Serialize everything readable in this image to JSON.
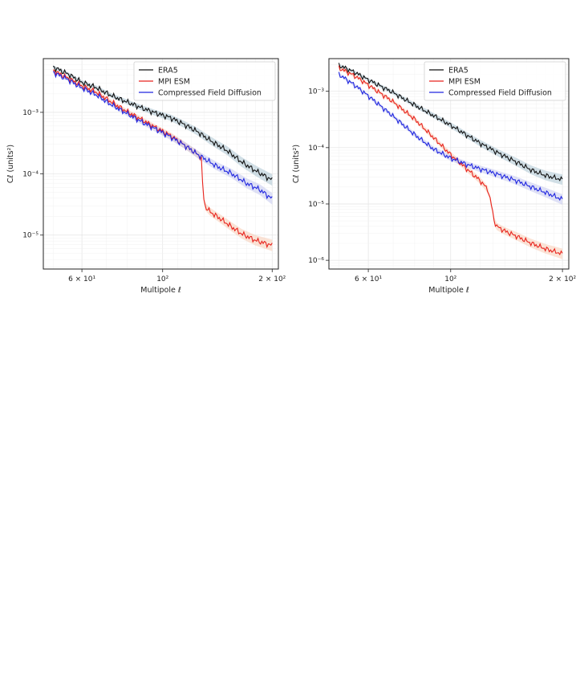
{
  "chart_data": [
    {
      "type": "line",
      "title": "",
      "xlabel": "Multipole ℓ",
      "ylabel": "Cℓ (units²)",
      "xscale": "log",
      "yscale": "log",
      "xlim": [
        47,
        208
      ],
      "ylim": [
        2.8e-06,
        0.0075
      ],
      "xticks": [
        {
          "value": 60,
          "label": "6 × 10¹"
        },
        {
          "value": 100,
          "label": "10²"
        },
        {
          "value": 200,
          "label": "2 × 10²"
        }
      ],
      "yticks": [
        {
          "value": 1e-05,
          "label": "10⁻⁵"
        },
        {
          "value": 0.0001,
          "label": "10⁻⁴"
        },
        {
          "value": 0.001,
          "label": "10⁻³"
        }
      ],
      "legend_position": "top-right",
      "series": [
        {
          "name": "ERA5",
          "color": "#111111",
          "band_color": "#9ab8c8",
          "x": [
            50,
            55,
            60,
            66,
            72,
            80,
            88,
            96,
            105,
            115,
            125,
            135,
            150,
            165,
            180,
            200
          ],
          "y": [
            0.0055,
            0.0042,
            0.0031,
            0.0025,
            0.0019,
            0.00147,
            0.00117,
            0.00097,
            0.00082,
            0.00063,
            0.00048,
            0.00035,
            0.00024,
            0.000155,
            0.000112,
            7.9e-05
          ]
        },
        {
          "name": "MPI ESM",
          "color": "#e8231d",
          "band_color": "#f7c0a3",
          "x": [
            50,
            55,
            60,
            66,
            72,
            80,
            88,
            96,
            105,
            115,
            125,
            128,
            129,
            131,
            135,
            145,
            155,
            165,
            180,
            200
          ],
          "y": [
            0.0048,
            0.0036,
            0.0027,
            0.0021,
            0.0015,
            0.00102,
            0.00075,
            0.00056,
            0.00042,
            0.00029,
            0.000205,
            0.00018,
            5e-05,
            2.9e-05,
            2.4e-05,
            1.8e-05,
            1.35e-05,
            1.05e-05,
            8.2e-06,
            6.8e-06
          ]
        },
        {
          "name": "Compressed Field Diffusion",
          "color": "#2026e0",
          "band_color": "#b8bcec",
          "x": [
            50,
            55,
            60,
            66,
            72,
            80,
            88,
            96,
            105,
            115,
            125,
            140,
            155,
            170,
            185,
            200
          ],
          "y": [
            0.0045,
            0.0034,
            0.0025,
            0.0019,
            0.00135,
            0.00095,
            0.00069,
            0.00053,
            0.0004,
            0.00029,
            0.000205,
            0.000135,
            0.0001,
            7e-05,
            5.5e-05,
            3.9e-05
          ]
        }
      ]
    },
    {
      "type": "line",
      "title": "",
      "xlabel": "Multipole ℓ",
      "ylabel": "Cℓ (units²)",
      "xscale": "log",
      "yscale": "log",
      "xlim": [
        47,
        208
      ],
      "ylim": [
        7e-07,
        0.0038
      ],
      "xticks": [
        {
          "value": 60,
          "label": "6 × 10¹"
        },
        {
          "value": 100,
          "label": "10²"
        },
        {
          "value": 200,
          "label": "2 × 10²"
        }
      ],
      "yticks": [
        {
          "value": 1e-06,
          "label": "10⁻⁶"
        },
        {
          "value": 1e-05,
          "label": "10⁻⁵"
        },
        {
          "value": 0.0001,
          "label": "10⁻⁴"
        },
        {
          "value": 0.001,
          "label": "10⁻³"
        }
      ],
      "legend_position": "top-right",
      "series": [
        {
          "name": "ERA5",
          "color": "#111111",
          "band_color": "#9ab8c8",
          "x": [
            50,
            55,
            60,
            70,
            80,
            90,
            100,
            110,
            120,
            135,
            150,
            165,
            180,
            200
          ],
          "y": [
            0.0029,
            0.0022,
            0.0016,
            0.00095,
            0.00057,
            0.00037,
            0.00025,
            0.00017,
            0.00012,
            7.9e-05,
            5.6e-05,
            4e-05,
            3.2e-05,
            2.7e-05
          ]
        },
        {
          "name": "MPI ESM",
          "color": "#e8231d",
          "band_color": "#f7c0a3",
          "x": [
            50,
            55,
            60,
            70,
            80,
            90,
            100,
            110,
            120,
            126,
            129,
            131,
            133,
            140,
            150,
            165,
            180,
            200
          ],
          "y": [
            0.0026,
            0.0019,
            0.0013,
            0.00065,
            0.00032,
            0.00015,
            7.5e-05,
            4.3e-05,
            2.6e-05,
            1.8e-05,
            9e-06,
            5e-06,
            4e-06,
            3.3e-06,
            2.7e-06,
            2e-06,
            1.6e-06,
            1.3e-06
          ]
        },
        {
          "name": "Compressed Field Diffusion",
          "color": "#2026e0",
          "band_color": "#b8bcec",
          "x": [
            50,
            55,
            60,
            70,
            80,
            90,
            100,
            110,
            120,
            135,
            150,
            165,
            180,
            200
          ],
          "y": [
            0.002,
            0.0013,
            0.00083,
            0.00036,
            0.00017,
            9.4e-05,
            6.5e-05,
            5.1e-05,
            4.2e-05,
            3.3e-05,
            2.6e-05,
            2e-05,
            1.6e-05,
            1.2e-05
          ]
        }
      ]
    }
  ]
}
